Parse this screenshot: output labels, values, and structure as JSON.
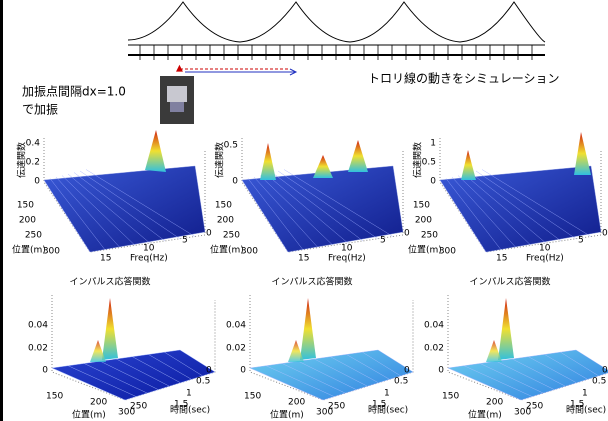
{
  "caption": "トロリ線の動きをシミュレーション",
  "excitation": {
    "line1": "加振点間隔dx=1.0",
    "line2": "で加振"
  },
  "top_plots": [
    {
      "zlabel": "伝達関数",
      "zticks": [
        "0.4",
        "0.2",
        "0"
      ],
      "xlabel": "位置(m)",
      "xticks": [
        "150",
        "200",
        "250",
        "300"
      ],
      "ylabel": "Freq(Hz)",
      "yticks": [
        "15",
        "10",
        "5",
        "0"
      ]
    },
    {
      "zlabel": "伝達関数",
      "zticks": [
        "0.5",
        "0"
      ],
      "xlabel": "位置(m)",
      "xticks": [
        "150",
        "200",
        "250",
        "300"
      ],
      "ylabel": "Freq(Hz)",
      "yticks": [
        "15",
        "10",
        "5",
        "0"
      ]
    },
    {
      "zlabel": "伝達関数",
      "zticks": [
        "1",
        "0.5",
        "0"
      ],
      "xlabel": "位置(m)",
      "xticks": [
        "150",
        "200",
        "250",
        "300"
      ],
      "ylabel": "Freq(Hz)",
      "yticks": [
        "15",
        "10",
        "5",
        "0"
      ]
    }
  ],
  "bottom_plots": [
    {
      "title": "インパルス応答関数",
      "zticks": [
        "0.04",
        "0.02",
        "0"
      ],
      "xlabel": "位置(m)",
      "xticks": [
        "150",
        "200",
        "250",
        "300"
      ],
      "ylabel": "時間(sec)",
      "yticks": [
        "0",
        "0.5",
        "1",
        "1.5"
      ]
    },
    {
      "title": "インパルス応答関数",
      "zticks": [
        "0.04",
        "0.02",
        "0"
      ],
      "xlabel": "位置(m)",
      "xticks": [
        "150",
        "200",
        "250",
        "300"
      ],
      "ylabel": "時間(sec)",
      "yticks": [
        "0",
        "0.5",
        "1",
        "1.5"
      ]
    },
    {
      "title": "インパルス応答関数",
      "zticks": [
        "0.04",
        "0.02",
        "0"
      ],
      "xlabel": "位置(m)",
      "xticks": [
        "150",
        "200",
        "250",
        "300"
      ],
      "ylabel": "時間(sec)",
      "yticks": [
        "0",
        "0.5",
        "1",
        "1.5"
      ]
    }
  ]
}
